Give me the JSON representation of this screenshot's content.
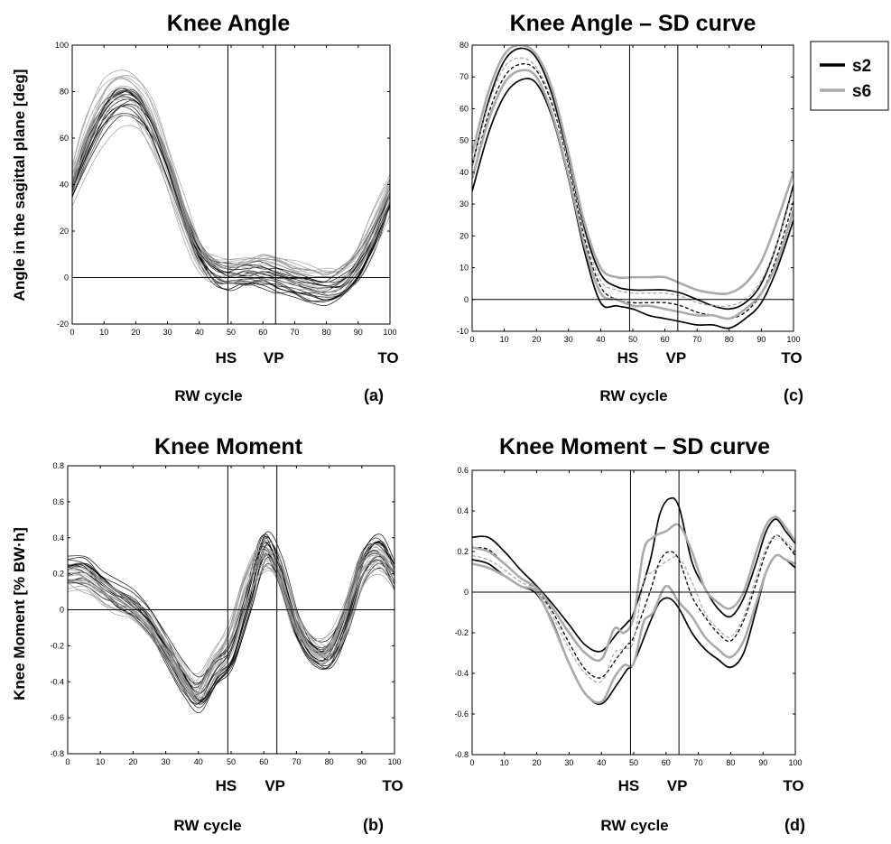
{
  "legend": {
    "items": [
      {
        "label": "s2",
        "color": "#000000"
      },
      {
        "label": "s6",
        "color": "#aaaaaa"
      }
    ]
  },
  "chart_data": [
    {
      "id": "a",
      "type": "line",
      "title": "Knee Angle",
      "panel_label": "(a)",
      "xlabel": "RW cycle",
      "ylabel": "Angle in the sagittal plane [deg]",
      "xlim": [
        0,
        100
      ],
      "ylim": [
        -20,
        100
      ],
      "xticks": [
        0,
        10,
        20,
        30,
        40,
        50,
        60,
        70,
        80,
        90,
        100
      ],
      "yticks": [
        -20,
        0,
        20,
        40,
        60,
        80,
        100
      ],
      "events": [
        {
          "label": "HS",
          "x": 49
        },
        {
          "label": "VP",
          "x": 64
        },
        {
          "label": "TO",
          "x": 100
        }
      ],
      "zero_line": true,
      "series": [
        {
          "subject": "s2",
          "style": "trials",
          "color": "#000000",
          "x": [
            0,
            5,
            10,
            15,
            20,
            25,
            30,
            35,
            40,
            45,
            50,
            55,
            60,
            65,
            70,
            75,
            80,
            85,
            90,
            95,
            100
          ],
          "y": [
            37,
            55,
            68,
            75,
            74,
            65,
            48,
            28,
            11,
            2,
            0,
            1,
            1,
            -1,
            -3,
            -5,
            -6,
            -4,
            3,
            16,
            33
          ]
        },
        {
          "subject": "s6",
          "style": "trials",
          "color": "#9a9a9a",
          "x": [
            0,
            5,
            10,
            15,
            20,
            25,
            30,
            35,
            40,
            45,
            50,
            55,
            60,
            65,
            70,
            75,
            80,
            85,
            90,
            95,
            100
          ],
          "y": [
            40,
            58,
            72,
            77,
            75,
            65,
            47,
            26,
            9,
            3,
            2,
            3,
            4,
            3,
            1,
            -1,
            -2,
            0,
            7,
            20,
            36
          ]
        }
      ]
    },
    {
      "id": "c",
      "type": "line",
      "title": "Knee Angle – SD curve",
      "panel_label": "(c)",
      "xlabel": "RW cycle",
      "xlim": [
        0,
        100
      ],
      "ylim": [
        -10,
        80
      ],
      "xticks": [
        0,
        10,
        20,
        30,
        40,
        50,
        60,
        70,
        80,
        90,
        100
      ],
      "yticks": [
        -10,
        0,
        10,
        20,
        30,
        40,
        50,
        60,
        70,
        80
      ],
      "events": [
        {
          "label": "HS",
          "x": 49
        },
        {
          "label": "VP",
          "x": 64
        },
        {
          "label": "TO",
          "x": 100
        }
      ],
      "zero_line": true,
      "series": [
        {
          "subject": "s2",
          "style": "upper",
          "color": "#000000",
          "x": [
            0,
            5,
            10,
            15,
            20,
            25,
            30,
            35,
            40,
            45,
            50,
            55,
            60,
            65,
            70,
            75,
            80,
            85,
            90,
            95,
            100
          ],
          "y": [
            42,
            62,
            75,
            79,
            76,
            64,
            44,
            22,
            8,
            4,
            3,
            3,
            3,
            2,
            0,
            -2,
            -3,
            -1,
            5,
            18,
            36
          ]
        },
        {
          "subject": "s2",
          "style": "mean",
          "color": "#000000",
          "x": [
            0,
            5,
            10,
            15,
            20,
            25,
            30,
            35,
            40,
            45,
            50,
            55,
            60,
            65,
            70,
            75,
            80,
            85,
            90,
            95,
            100
          ],
          "y": [
            38,
            58,
            70,
            74,
            72,
            61,
            42,
            19,
            4,
            0,
            -1,
            -1,
            -1,
            -2,
            -4,
            -5,
            -6,
            -4,
            2,
            14,
            31
          ]
        },
        {
          "subject": "s2",
          "style": "lower",
          "color": "#000000",
          "x": [
            0,
            5,
            10,
            15,
            20,
            25,
            30,
            35,
            40,
            45,
            50,
            55,
            60,
            65,
            70,
            75,
            80,
            85,
            90,
            95,
            100
          ],
          "y": [
            34,
            52,
            64,
            69,
            68,
            57,
            38,
            15,
            -1,
            -2,
            -3,
            -5,
            -6,
            -7,
            -8,
            -8,
            -9,
            -6,
            -1,
            10,
            25
          ]
        },
        {
          "subject": "s6",
          "style": "upper",
          "color": "#aaaaaa",
          "x": [
            0,
            5,
            10,
            15,
            20,
            25,
            30,
            35,
            40,
            45,
            50,
            55,
            60,
            65,
            70,
            75,
            80,
            85,
            90,
            95,
            100
          ],
          "y": [
            46,
            65,
            77,
            80,
            77,
            66,
            46,
            24,
            10,
            7,
            7,
            7,
            7,
            5,
            3,
            2,
            2,
            5,
            12,
            25,
            40
          ]
        },
        {
          "subject": "s6",
          "style": "mean",
          "color": "#aaaaaa",
          "x": [
            0,
            5,
            10,
            15,
            20,
            25,
            30,
            35,
            40,
            45,
            50,
            55,
            60,
            65,
            70,
            75,
            80,
            85,
            90,
            95,
            100
          ],
          "y": [
            42,
            61,
            73,
            76,
            73,
            62,
            43,
            21,
            6,
            3,
            2,
            2,
            2,
            1,
            -1,
            -2,
            -2,
            0,
            6,
            18,
            35
          ]
        },
        {
          "subject": "s6",
          "style": "lower",
          "color": "#aaaaaa",
          "x": [
            0,
            5,
            10,
            15,
            20,
            25,
            30,
            35,
            40,
            45,
            50,
            55,
            60,
            65,
            70,
            75,
            80,
            85,
            90,
            95,
            100
          ],
          "y": [
            38,
            56,
            68,
            72,
            70,
            58,
            39,
            17,
            2,
            0,
            -2,
            -2,
            -3,
            -4,
            -5,
            -5,
            -6,
            -3,
            2,
            12,
            28
          ]
        }
      ]
    },
    {
      "id": "b",
      "type": "line",
      "title": "Knee Moment",
      "panel_label": "(b)",
      "xlabel": "RW cycle",
      "ylabel": "Knee Moment [% BW·h]",
      "xlim": [
        0,
        100
      ],
      "ylim": [
        -0.8,
        0.8
      ],
      "xticks": [
        0,
        10,
        20,
        30,
        40,
        50,
        60,
        70,
        80,
        90,
        100
      ],
      "yticks": [
        -0.8,
        -0.6,
        -0.4,
        -0.2,
        0,
        0.2,
        0.4,
        0.6,
        0.8
      ],
      "events": [
        {
          "label": "HS",
          "x": 49
        },
        {
          "label": "VP",
          "x": 64
        },
        {
          "label": "TO",
          "x": 100
        }
      ],
      "zero_line": true,
      "series": [
        {
          "subject": "s2",
          "style": "trials",
          "color": "#000000",
          "x": [
            0,
            5,
            10,
            15,
            20,
            25,
            30,
            35,
            40,
            45,
            50,
            55,
            60,
            65,
            70,
            75,
            80,
            85,
            90,
            95,
            100
          ],
          "y": [
            0.22,
            0.22,
            0.15,
            0.08,
            0.02,
            -0.08,
            -0.22,
            -0.38,
            -0.48,
            -0.35,
            -0.25,
            0.05,
            0.35,
            0.2,
            -0.1,
            -0.25,
            -0.25,
            -0.05,
            0.25,
            0.33,
            0.2
          ]
        },
        {
          "subject": "s6",
          "style": "trials",
          "color": "#9a9a9a",
          "x": [
            0,
            5,
            10,
            15,
            20,
            25,
            30,
            35,
            40,
            45,
            50,
            55,
            60,
            65,
            70,
            75,
            80,
            85,
            90,
            95,
            100
          ],
          "y": [
            0.2,
            0.18,
            0.12,
            0.06,
            0.01,
            -0.08,
            -0.2,
            -0.34,
            -0.45,
            -0.3,
            -0.15,
            0.15,
            0.3,
            0.22,
            -0.05,
            -0.2,
            -0.22,
            -0.05,
            0.22,
            0.3,
            0.2
          ]
        }
      ]
    },
    {
      "id": "d",
      "type": "line",
      "title": "Knee Moment – SD curve",
      "panel_label": "(d)",
      "xlabel": "RW cycle",
      "xlim": [
        0,
        100
      ],
      "ylim": [
        -0.8,
        0.6
      ],
      "xticks": [
        0,
        10,
        20,
        30,
        40,
        50,
        60,
        70,
        80,
        90,
        100
      ],
      "yticks": [
        -0.8,
        -0.6,
        -0.4,
        -0.2,
        0,
        0.2,
        0.4,
        0.6
      ],
      "events": [
        {
          "label": "HS",
          "x": 49
        },
        {
          "label": "VP",
          "x": 64
        },
        {
          "label": "TO",
          "x": 100
        }
      ],
      "zero_line": true,
      "series": [
        {
          "subject": "s2",
          "style": "upper",
          "color": "#000000",
          "x": [
            0,
            5,
            10,
            15,
            20,
            25,
            30,
            35,
            40,
            45,
            48,
            50,
            55,
            58,
            61,
            64,
            68,
            72,
            76,
            80,
            84,
            88,
            91,
            94,
            97,
            100
          ],
          "y": [
            0.27,
            0.27,
            0.2,
            0.11,
            0.03,
            -0.06,
            -0.16,
            -0.26,
            -0.29,
            -0.2,
            -0.15,
            -0.1,
            0.15,
            0.38,
            0.46,
            0.42,
            0.15,
            0.02,
            -0.08,
            -0.12,
            -0.03,
            0.15,
            0.3,
            0.36,
            0.3,
            0.24
          ]
        },
        {
          "subject": "s2",
          "style": "mean",
          "color": "#000000",
          "x": [
            0,
            5,
            10,
            15,
            20,
            25,
            30,
            35,
            40,
            45,
            48,
            50,
            55,
            58,
            61,
            64,
            68,
            72,
            76,
            80,
            84,
            88,
            91,
            94,
            97,
            100
          ],
          "y": [
            0.22,
            0.21,
            0.14,
            0.07,
            0.01,
            -0.1,
            -0.25,
            -0.38,
            -0.42,
            -0.32,
            -0.26,
            -0.22,
            0.0,
            0.15,
            0.2,
            0.16,
            -0.02,
            -0.12,
            -0.2,
            -0.24,
            -0.14,
            0.05,
            0.2,
            0.28,
            0.24,
            0.18
          ]
        },
        {
          "subject": "s2",
          "style": "lower",
          "color": "#000000",
          "x": [
            0,
            5,
            10,
            15,
            20,
            25,
            30,
            35,
            40,
            45,
            48,
            50,
            55,
            58,
            61,
            64,
            68,
            72,
            76,
            80,
            84,
            88,
            91,
            94,
            97,
            100
          ],
          "y": [
            0.16,
            0.14,
            0.08,
            0.03,
            -0.01,
            -0.15,
            -0.35,
            -0.5,
            -0.55,
            -0.45,
            -0.38,
            -0.35,
            -0.15,
            -0.05,
            -0.03,
            -0.08,
            -0.2,
            -0.28,
            -0.33,
            -0.37,
            -0.3,
            -0.08,
            0.1,
            0.18,
            0.16,
            0.12
          ]
        },
        {
          "subject": "s6",
          "style": "upper",
          "color": "#aaaaaa",
          "x": [
            0,
            5,
            10,
            15,
            20,
            25,
            30,
            35,
            40,
            44,
            47,
            50,
            53,
            56,
            60,
            64,
            68,
            72,
            76,
            80,
            84,
            88,
            91,
            94,
            97,
            100
          ],
          "y": [
            0.22,
            0.2,
            0.14,
            0.07,
            0.02,
            -0.08,
            -0.2,
            -0.3,
            -0.33,
            -0.18,
            -0.2,
            -0.12,
            0.2,
            0.27,
            0.3,
            0.33,
            0.2,
            0.02,
            -0.05,
            -0.08,
            0.0,
            0.2,
            0.33,
            0.37,
            0.32,
            0.25
          ]
        },
        {
          "subject": "s6",
          "style": "mean",
          "color": "#aaaaaa",
          "x": [
            0,
            5,
            10,
            15,
            20,
            25,
            30,
            35,
            40,
            44,
            47,
            50,
            53,
            56,
            60,
            64,
            68,
            72,
            76,
            80,
            84,
            88,
            91,
            94,
            97,
            100
          ],
          "y": [
            0.18,
            0.16,
            0.11,
            0.05,
            0.01,
            -0.12,
            -0.28,
            -0.4,
            -0.44,
            -0.3,
            -0.28,
            -0.24,
            0.05,
            0.1,
            0.15,
            0.17,
            0.05,
            -0.1,
            -0.18,
            -0.22,
            -0.12,
            0.08,
            0.22,
            0.28,
            0.25,
            0.2
          ]
        },
        {
          "subject": "s6",
          "style": "lower",
          "color": "#aaaaaa",
          "x": [
            0,
            5,
            10,
            15,
            20,
            25,
            30,
            35,
            40,
            44,
            47,
            50,
            53,
            56,
            60,
            64,
            68,
            72,
            76,
            80,
            84,
            88,
            91,
            94,
            97,
            100
          ],
          "y": [
            0.14,
            0.12,
            0.08,
            0.03,
            0.0,
            -0.16,
            -0.35,
            -0.5,
            -0.54,
            -0.42,
            -0.36,
            -0.35,
            -0.15,
            -0.1,
            0.03,
            -0.05,
            -0.12,
            -0.22,
            -0.28,
            -0.32,
            -0.24,
            -0.05,
            0.1,
            0.18,
            0.16,
            0.14
          ]
        }
      ]
    }
  ]
}
